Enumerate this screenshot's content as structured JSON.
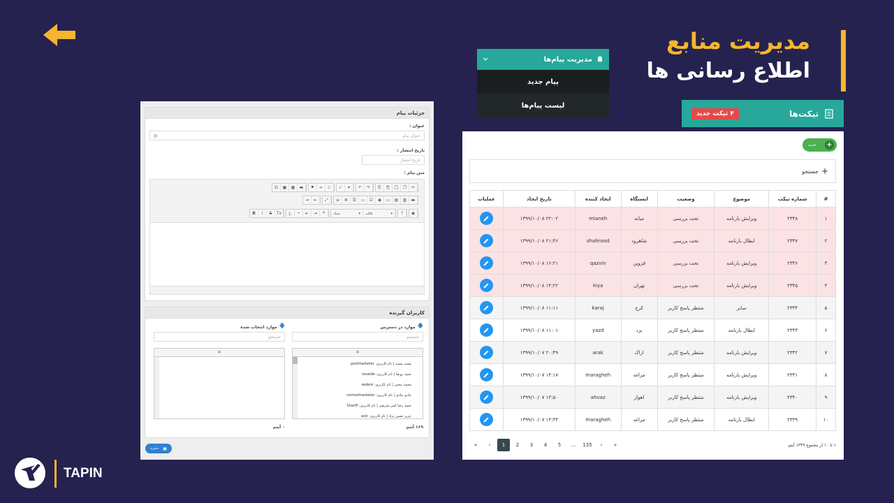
{
  "title": {
    "line1": "مدیریت منابع",
    "line2": "اطلاع رسانی ها"
  },
  "menu": {
    "header": "مدیریت پیام‌ها",
    "items": [
      {
        "label": "پیام جدید"
      },
      {
        "label": "لیست پیام‌ها"
      }
    ]
  },
  "tickets_header": {
    "title": "تیکت‌ها",
    "badge": "۴ تیکت جدید"
  },
  "message_form": {
    "card_title": "جزئیات پیام",
    "title_label": "عنوان :",
    "title_placeholder": "عنوان پیام",
    "date_label": "تاریخ انتشار :",
    "date_placeholder": "تاریخ انتشار",
    "body_label": "متن پیام :",
    "toolbar_font": "سبک",
    "toolbar_format": "قالب"
  },
  "recipients": {
    "card_title": "کاربران گیرنده",
    "available_label": "موارد در دسترس",
    "selected_label": "موارد انتخاب شده",
    "search_placeholder": "جستجو",
    "available_items": [
      "پست پست | نام کاربری: postmarketer",
      "حمید رونقا | نام کاربری: ronaide",
      "محمد محبی | نام کاربری: sadere",
      "مادی مادی | نام کاربری: normalmarketer",
      "حمید رضا امیر شریفی | نام کاربری: Sharifi",
      "عزیز حسن نژاد | نام کاربری: aziz"
    ],
    "available_count": "۱۶۹ آیتم",
    "selected_count": "۰ آیتم",
    "save_label": "ذخیره"
  },
  "tickets": {
    "new_button": "جدید",
    "search_label": "جستجو",
    "columns": [
      "#",
      "شماره تیکت",
      "موضوع",
      "وضعیت",
      "ایستگاه",
      "ایجاد کننده",
      "تاریخ ایجاد",
      "عملیات"
    ],
    "rows": [
      {
        "n": "۱",
        "id": "۲۳۴۸",
        "subject": "ویرایش بارنامه",
        "status": "تحت بررسی",
        "station": "میانه",
        "creator": "mianeh",
        "date": "۱۳۹۹/۱۰/۰۸  ۲۲:۰۲"
      },
      {
        "n": "۲",
        "id": "۲۳۴۷",
        "subject": "ابطال بارنامه",
        "status": "تحت بررسی",
        "station": "شاهرود",
        "creator": "shahrood",
        "date": "۱۳۹۹/۱۰/۰۸  ۲۱:۴۶"
      },
      {
        "n": "۳",
        "id": "۲۳۴۶",
        "subject": "ویرایش بارنامه",
        "status": "تحت بررسی",
        "station": "قزوین",
        "creator": "qazvin",
        "date": "۱۳۹۹/۱۰/۰۸  ۱۶:۲۱"
      },
      {
        "n": "۴",
        "id": "۲۳۴۵",
        "subject": "ویرایش بارنامه",
        "status": "تحت بررسی",
        "station": "تهران",
        "creator": "kiya",
        "date": "۱۳۹۹/۱۰/۰۸  ۱۴:۲۲"
      },
      {
        "n": "۵",
        "id": "۲۳۴۴",
        "subject": "سایر",
        "status": "منتظر پاسخ کاربر",
        "station": "کرج",
        "creator": "karaj",
        "date": "۱۳۹۹/۱۰/۰۸  ۱۱:۱۱"
      },
      {
        "n": "۶",
        "id": "۲۳۴۳",
        "subject": "ابطال بارنامه",
        "status": "منتظر پاسخ کاربر",
        "station": "یزد",
        "creator": "yazd",
        "date": "۱۳۹۹/۱۰/۰۸  ۱۱:۰۱"
      },
      {
        "n": "۷",
        "id": "۲۳۴۲",
        "subject": "ویرایش بارنامه",
        "status": "منتظر پاسخ کاربر",
        "station": "اراک",
        "creator": "arak",
        "date": "۱۳۹۹/۱۰/۰۷  ۲۰:۳۹"
      },
      {
        "n": "۸",
        "id": "۲۳۴۱",
        "subject": "ویرایش بارنامه",
        "status": "منتظر پاسخ کاربر",
        "station": "مراغه",
        "creator": "maragheh",
        "date": "۱۳۹۹/۱۰/۰۷  ۱۴:۱۷"
      },
      {
        "n": "۹",
        "id": "۲۳۴۰",
        "subject": "ویرایش بارنامه",
        "status": "منتظر پاسخ کاربر",
        "station": "اهواز",
        "creator": "ahvaz",
        "date": "۱۳۹۹/۱۰/۰۷  ۱۳:۵۰"
      },
      {
        "n": "۱۰",
        "id": "۲۳۳۹",
        "subject": "ابطال بارنامه",
        "status": "منتظر پاسخ کاربر",
        "station": "مراغه",
        "creator": "maragheh",
        "date": "۱۳۹۹/۱۰/۰۷  ۱۳:۳۴"
      }
    ],
    "row_colors": [
      "pink",
      "pink",
      "pink",
      "pink",
      "gray",
      "white",
      "gray",
      "white",
      "gray",
      "white"
    ],
    "summary": "۱ تا ۱۰ از مجموع ۱۳۴۹ آیتم",
    "pages": [
      "«",
      "‹",
      "1",
      "2",
      "3",
      "4",
      "5",
      "...",
      "135",
      "›",
      "»"
    ],
    "active_page": "1"
  },
  "brand": {
    "name": "TAPIN"
  },
  "colors": {
    "background": "#26224f",
    "accent": "#f5b52e",
    "teal": "#27a89a"
  }
}
